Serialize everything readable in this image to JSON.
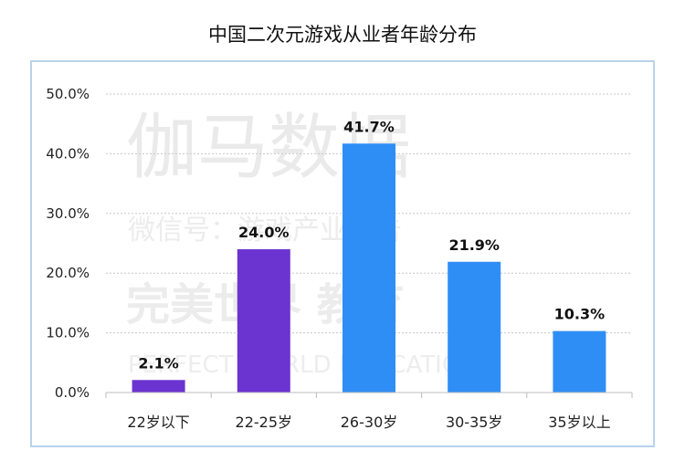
{
  "chart_data": {
    "type": "bar",
    "title": "中国二次元游戏从业者年龄分布",
    "categories": [
      "22岁以下",
      "22-25岁",
      "26-30岁",
      "30-35岁",
      "35岁以上"
    ],
    "values": [
      2.1,
      24.0,
      41.7,
      21.9,
      10.3
    ],
    "data_labels": [
      "2.1%",
      "24.0%",
      "41.7%",
      "21.9%",
      "10.3%"
    ],
    "bar_colors": [
      "#6b34d1",
      "#6b34d1",
      "#2f8ef6",
      "#2f8ef6",
      "#2f8ef6"
    ],
    "y_ticks": [
      "0.0%",
      "10.0%",
      "20.0%",
      "30.0%",
      "40.0%",
      "50.0%"
    ],
    "ylim": [
      0,
      50
    ],
    "grid": true,
    "xlabel": "",
    "ylabel": ""
  },
  "watermark": {
    "line1": "伽马数据",
    "line2": "微信号：游戏产业报告",
    "line3": "完美世界 教育",
    "line4": "PERFECT WORLD  EDUCATION"
  }
}
